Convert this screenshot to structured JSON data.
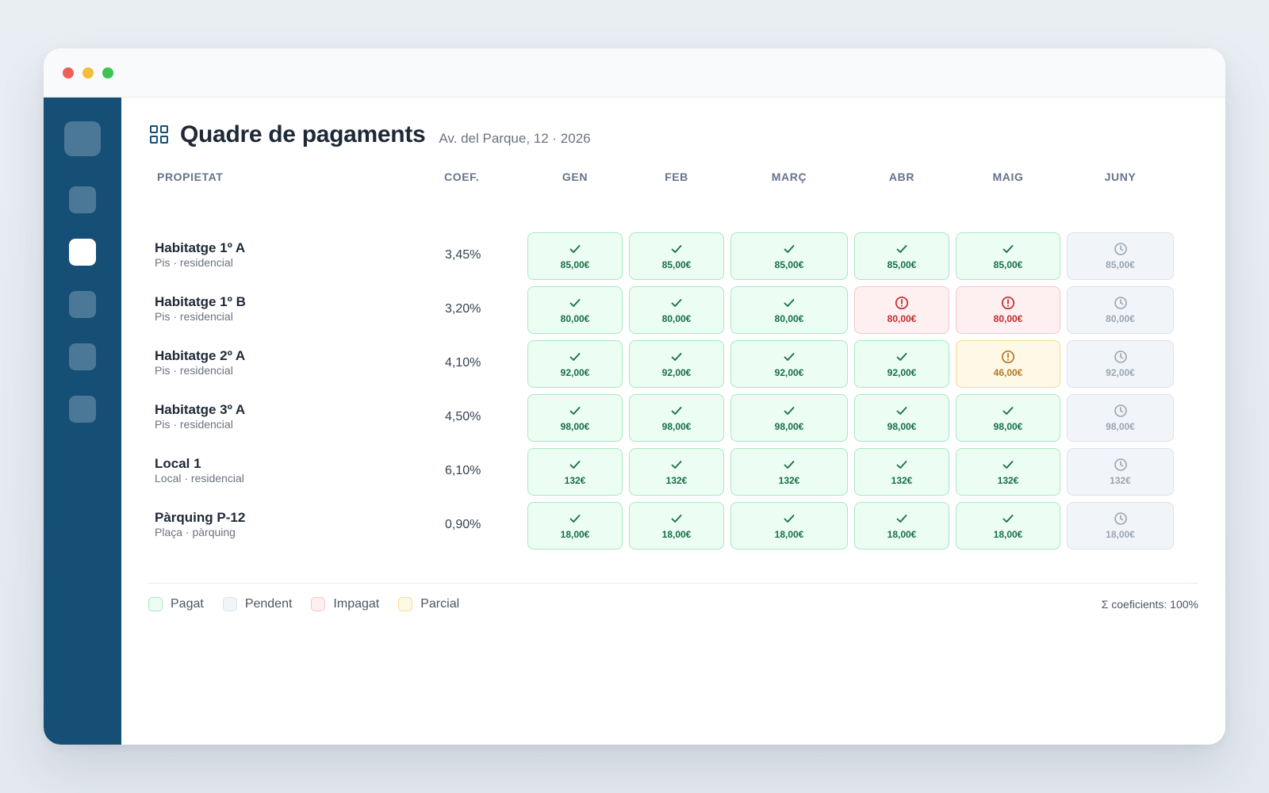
{
  "header": {
    "title": "Quadre de pagaments",
    "subtitle": "Av. del Parque, 12 · 2026",
    "icon": "grid-icon"
  },
  "columns": {
    "property": "PROPIETAT",
    "coef": "COEF.",
    "months": [
      "GEN",
      "FEB",
      "MARÇ",
      "ABR",
      "MAIG",
      "JUNY"
    ]
  },
  "rows": [
    {
      "name": "Habitatge 1º A",
      "type": "Pis · residencial",
      "coef": "3,45%",
      "cells": [
        {
          "status": "paid",
          "amount": "85,00€"
        },
        {
          "status": "paid",
          "amount": "85,00€"
        },
        {
          "status": "paid",
          "amount": "85,00€"
        },
        {
          "status": "paid",
          "amount": "85,00€"
        },
        {
          "status": "paid",
          "amount": "85,00€"
        },
        {
          "status": "pending",
          "amount": "85,00€"
        }
      ]
    },
    {
      "name": "Habitatge 1º B",
      "type": "Pis · residencial",
      "coef": "3,20%",
      "cells": [
        {
          "status": "paid",
          "amount": "80,00€"
        },
        {
          "status": "paid",
          "amount": "80,00€"
        },
        {
          "status": "paid",
          "amount": "80,00€"
        },
        {
          "status": "unpaid",
          "amount": "80,00€"
        },
        {
          "status": "unpaid",
          "amount": "80,00€"
        },
        {
          "status": "pending",
          "amount": "80,00€"
        }
      ]
    },
    {
      "name": "Habitatge 2º A",
      "type": "Pis · residencial",
      "coef": "4,10%",
      "cells": [
        {
          "status": "paid",
          "amount": "92,00€"
        },
        {
          "status": "paid",
          "amount": "92,00€"
        },
        {
          "status": "paid",
          "amount": "92,00€"
        },
        {
          "status": "paid",
          "amount": "92,00€"
        },
        {
          "status": "partial",
          "amount": "46,00€"
        },
        {
          "status": "pending",
          "amount": "92,00€"
        }
      ]
    },
    {
      "name": "Habitatge 3º A",
      "type": "Pis · residencial",
      "coef": "4,50%",
      "cells": [
        {
          "status": "paid",
          "amount": "98,00€"
        },
        {
          "status": "paid",
          "amount": "98,00€"
        },
        {
          "status": "paid",
          "amount": "98,00€"
        },
        {
          "status": "paid",
          "amount": "98,00€"
        },
        {
          "status": "paid",
          "amount": "98,00€"
        },
        {
          "status": "pending",
          "amount": "98,00€"
        }
      ]
    },
    {
      "name": "Local 1",
      "type": "Local · residencial",
      "coef": "6,10%",
      "cells": [
        {
          "status": "paid",
          "amount": "132€"
        },
        {
          "status": "paid",
          "amount": "132€"
        },
        {
          "status": "paid",
          "amount": "132€"
        },
        {
          "status": "paid",
          "amount": "132€"
        },
        {
          "status": "paid",
          "amount": "132€"
        },
        {
          "status": "pending",
          "amount": "132€"
        }
      ]
    },
    {
      "name": "Pàrquing P-12",
      "type": "Plaça · pàrquing",
      "coef": "0,90%",
      "cells": [
        {
          "status": "paid",
          "amount": "18,00€"
        },
        {
          "status": "paid",
          "amount": "18,00€"
        },
        {
          "status": "paid",
          "amount": "18,00€"
        },
        {
          "status": "paid",
          "amount": "18,00€"
        },
        {
          "status": "paid",
          "amount": "18,00€"
        },
        {
          "status": "pending",
          "amount": "18,00€"
        }
      ]
    }
  ],
  "legend": {
    "paid": "Pagat",
    "pending": "Pendent",
    "unpaid": "Impagat",
    "partial": "Parcial"
  },
  "coef_sum": "Σ coeficients: 100%",
  "colors": {
    "sidebar": "#164f75",
    "paid": "#166e47",
    "pending": "#9aa5b1",
    "unpaid": "#c02b2b",
    "partial": "#b7791f"
  },
  "status_icons": {
    "paid": "check-icon",
    "pending": "clock-icon",
    "unpaid": "alert-circle-icon",
    "partial": "alert-circle-icon"
  }
}
